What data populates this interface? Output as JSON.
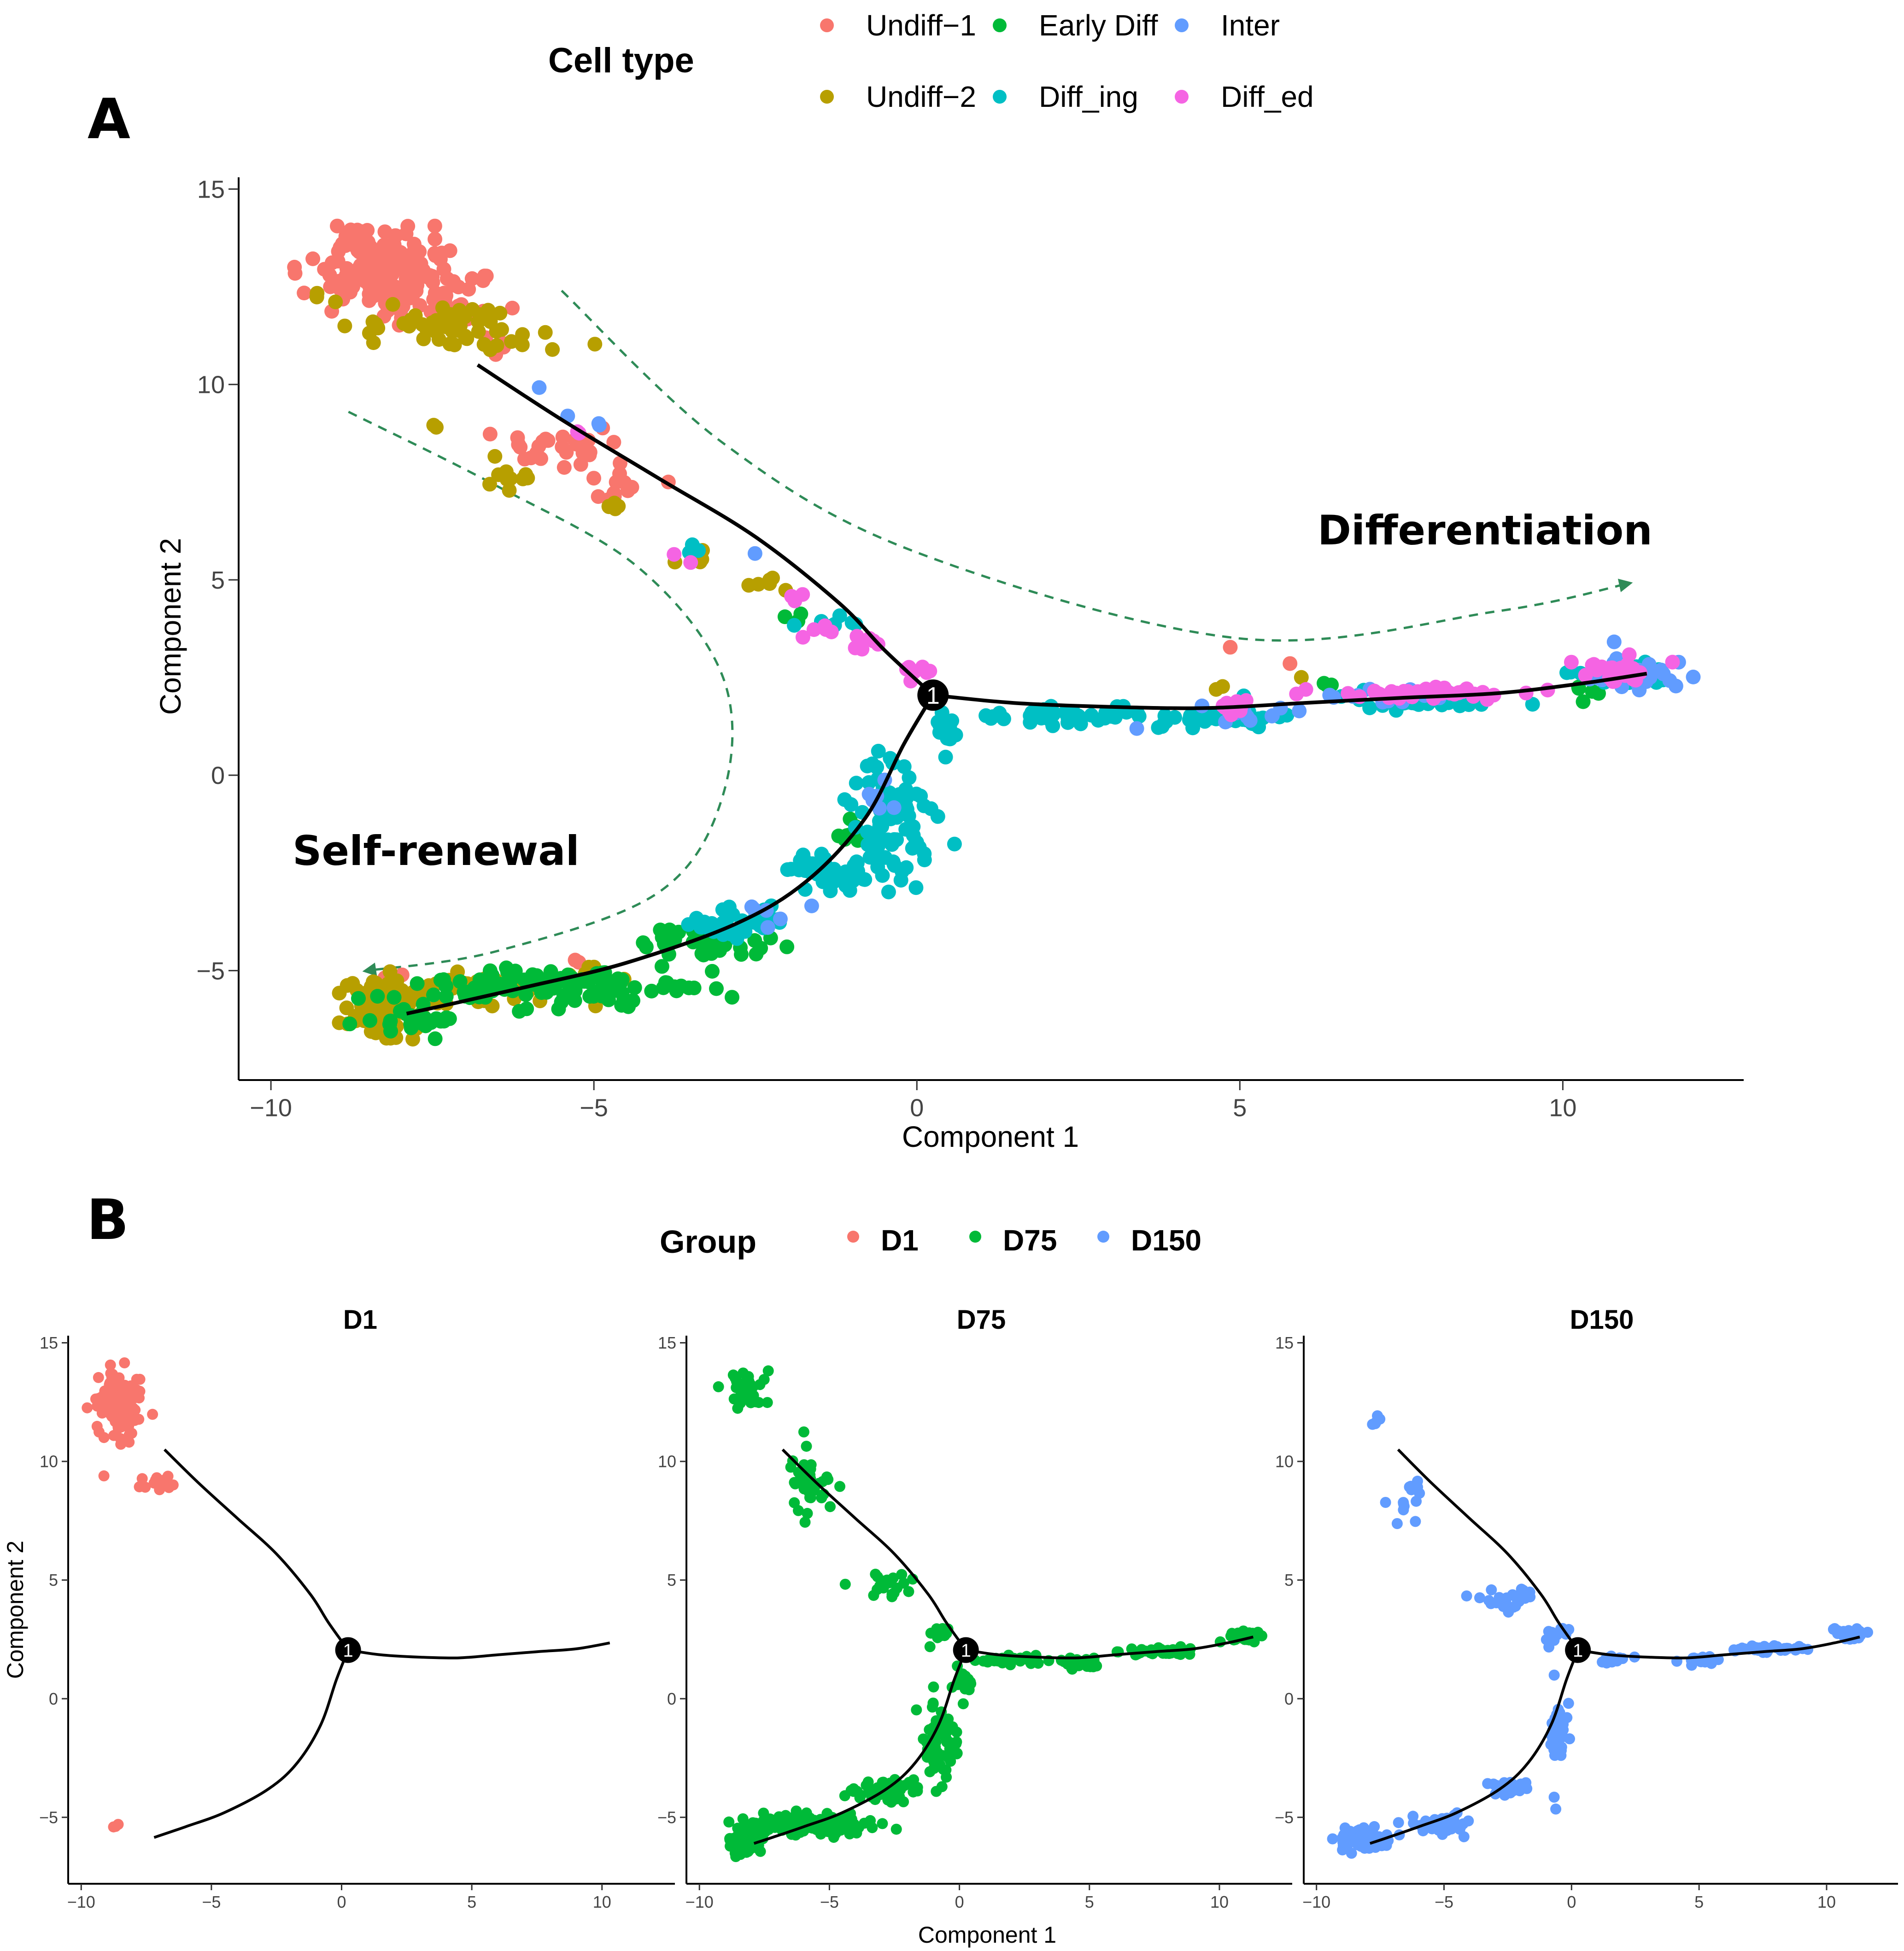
{
  "figure": {
    "panel_a_letter": "A",
    "panel_b_letter": "B"
  },
  "colors": {
    "Undiff-1": "#F8766D",
    "Undiff-2": "#B79F00",
    "Early Diff": "#00BA38",
    "Diff_ing": "#00BFC4",
    "Inter": "#619CFF",
    "Diff_ed": "#F564E3",
    "D1": "#F8766D",
    "D75": "#00BA38",
    "D150": "#619CFF",
    "arrow": "#2E8B57",
    "trajectory": "#000000"
  },
  "chart_data": [
    {
      "id": "panel-a",
      "type": "scatter",
      "title": "",
      "xlabel": "Component 1",
      "ylabel": "Component 2",
      "xlim": [
        -10.5,
        12.8
      ],
      "ylim": [
        -7.8,
        15.3
      ],
      "xticks": [
        -10,
        -5,
        0,
        5,
        10
      ],
      "xtick_labels": [
        "−10",
        "−5",
        "0",
        "5",
        "10"
      ],
      "yticks": [
        -5,
        0,
        5,
        10,
        15
      ],
      "ytick_labels": [
        "−5",
        "0",
        "5",
        "10",
        "15"
      ],
      "legend": {
        "title": "Cell type",
        "position": "top",
        "entries": [
          "Undiff−1",
          "Early Diff",
          "Inter",
          "Undiff−2",
          "Diff_ing",
          "Diff_ed"
        ],
        "keys": [
          "Undiff-1",
          "Early Diff",
          "Inter",
          "Undiff-2",
          "Diff_ing",
          "Diff_ed"
        ]
      },
      "annotations": {
        "differentiation": "Differentiation",
        "self_renewal": "Self-renewal",
        "branch_point": "1"
      },
      "branch_point": [
        0.25,
        2.05
      ],
      "trajectory": [
        [
          [
            -6.8,
            10.5
          ],
          [
            -5.5,
            9.1
          ],
          [
            -4,
            7.6
          ],
          [
            -2.5,
            6.1
          ],
          [
            -1.2,
            4.4
          ],
          [
            -0.5,
            3.2
          ],
          [
            0.25,
            2.05
          ]
        ],
        [
          [
            0.25,
            2.05
          ],
          [
            1.5,
            1.85
          ],
          [
            3,
            1.75
          ],
          [
            4.5,
            1.72
          ],
          [
            6,
            1.85
          ],
          [
            7.5,
            1.98
          ],
          [
            9,
            2.1
          ],
          [
            10.3,
            2.35
          ],
          [
            11.3,
            2.6
          ]
        ],
        [
          [
            0.25,
            2.05
          ],
          [
            -0.2,
            0.8
          ],
          [
            -0.8,
            -1.1
          ],
          [
            -1.7,
            -2.7
          ],
          [
            -2.8,
            -3.8
          ],
          [
            -4.5,
            -4.8
          ],
          [
            -6,
            -5.4
          ],
          [
            -7.2,
            -5.85
          ],
          [
            -7.9,
            -6.1
          ]
        ]
      ],
      "arrows": [
        [
          [
            -5.5,
            12.4
          ],
          [
            -3,
            8.5
          ],
          [
            0,
            5.7
          ],
          [
            5,
            3.5
          ],
          [
            9,
            4.2
          ],
          [
            11,
            4.9
          ]
        ],
        [
          [
            -8.8,
            9.3
          ],
          [
            -6.5,
            7.4
          ],
          [
            -4.3,
            5.3
          ],
          [
            -3,
            2.5
          ],
          [
            -3,
            -0.5
          ],
          [
            -4,
            -3
          ],
          [
            -6.5,
            -4.5
          ],
          [
            -8.5,
            -5
          ]
        ]
      ],
      "series": [
        {
          "name": "Undiff-1",
          "clusters": [
            {
              "cx": -8.1,
              "cy": 12.9,
              "rx": 0.95,
              "ry": 0.95,
              "n": 150
            },
            {
              "cx": -8.8,
              "cy": 13.7,
              "rx": 0.35,
              "ry": 0.4,
              "n": 20
            },
            {
              "cx": -7.2,
              "cy": 12.1,
              "rx": 0.6,
              "ry": 0.5,
              "n": 20
            },
            {
              "cx": -6.7,
              "cy": 11.0,
              "rx": 0.4,
              "ry": 0.5,
              "n": 4
            },
            {
              "cx": -5.5,
              "cy": 8.5,
              "rx": 0.9,
              "ry": 0.6,
              "n": 30
            },
            {
              "cx": -4.7,
              "cy": 7.3,
              "rx": 0.5,
              "ry": 0.3,
              "n": 12
            },
            {
              "cx": 4.85,
              "cy": 3.3,
              "rx": 0.05,
              "ry": 0.05,
              "n": 1
            },
            {
              "cx": 5.8,
              "cy": 2.85,
              "rx": 0.05,
              "ry": 0.05,
              "n": 1
            },
            {
              "cx": -8.2,
              "cy": -5.2,
              "rx": 0.25,
              "ry": 0.15,
              "n": 3
            },
            {
              "cx": -5.3,
              "cy": -4.8,
              "rx": 0.15,
              "ry": 0.1,
              "n": 2
            }
          ]
        },
        {
          "name": "Undiff-2",
          "clusters": [
            {
              "cx": -8.3,
              "cy": -6.0,
              "rx": 0.45,
              "ry": 0.55,
              "n": 170
            },
            {
              "cx": -7.3,
              "cy": 11.4,
              "rx": 1.2,
              "ry": 0.55,
              "n": 60
            },
            {
              "cx": -9.2,
              "cy": 12.2,
              "rx": 0.2,
              "ry": 0.15,
              "n": 3
            },
            {
              "cx": -7.5,
              "cy": 8.9,
              "rx": 0.2,
              "ry": 0.2,
              "n": 2
            },
            {
              "cx": -6.2,
              "cy": 7.6,
              "rx": 0.4,
              "ry": 0.5,
              "n": 10
            },
            {
              "cx": -4.8,
              "cy": 6.9,
              "rx": 0.3,
              "ry": 0.15,
              "n": 5
            },
            {
              "cx": -3.3,
              "cy": 5.6,
              "rx": 0.4,
              "ry": 0.3,
              "n": 5
            },
            {
              "cx": -2.5,
              "cy": 4.9,
              "rx": 0.5,
              "ry": 0.25,
              "n": 6
            },
            {
              "cx": -6.5,
              "cy": -5.5,
              "rx": 1.0,
              "ry": 0.35,
              "n": 35
            },
            {
              "cx": -5.1,
              "cy": -5.1,
              "rx": 0.5,
              "ry": 0.25,
              "n": 12
            },
            {
              "cx": 4.7,
              "cy": 2.2,
              "rx": 0.2,
              "ry": 0.1,
              "n": 2
            },
            {
              "cx": 5.9,
              "cy": 2.5,
              "rx": 0.05,
              "ry": 0.05,
              "n": 1
            }
          ]
        },
        {
          "name": "Early Diff",
          "clusters": [
            {
              "cx": -5.6,
              "cy": -5.4,
              "rx": 2.2,
              "ry": 0.4,
              "n": 110
            },
            {
              "cx": -3.2,
              "cy": -4.3,
              "rx": 1.0,
              "ry": 0.35,
              "n": 40
            },
            {
              "cx": -7.7,
              "cy": -6.3,
              "rx": 0.6,
              "ry": 0.3,
              "n": 25
            },
            {
              "cx": -1.0,
              "cy": -1.5,
              "rx": 0.3,
              "ry": 0.4,
              "n": 8
            },
            {
              "cx": -1.8,
              "cy": 4.0,
              "rx": 0.2,
              "ry": 0.2,
              "n": 3
            },
            {
              "cx": 6.3,
              "cy": 2.3,
              "rx": 0.3,
              "ry": 0.1,
              "n": 3
            },
            {
              "cx": 10.3,
              "cy": 2.1,
              "rx": 0.3,
              "ry": 0.2,
              "n": 5
            }
          ]
        },
        {
          "name": "Diff_ing",
          "clusters": [
            {
              "cx": -0.4,
              "cy": -1.2,
              "rx": 0.6,
              "ry": 1.4,
              "n": 80
            },
            {
              "cx": -1.4,
              "cy": -2.5,
              "rx": 0.55,
              "ry": 0.45,
              "n": 40
            },
            {
              "cx": -2.8,
              "cy": -3.8,
              "rx": 0.7,
              "ry": 0.35,
              "n": 35
            },
            {
              "cx": 0.5,
              "cy": 1.1,
              "rx": 0.2,
              "ry": 0.5,
              "n": 15
            },
            {
              "cx": 2.3,
              "cy": 1.55,
              "rx": 1.3,
              "ry": 0.25,
              "n": 40
            },
            {
              "cx": 4.7,
              "cy": 1.45,
              "rx": 0.9,
              "ry": 0.2,
              "n": 40
            },
            {
              "cx": 7.8,
              "cy": 1.9,
              "rx": 1.3,
              "ry": 0.2,
              "n": 40
            },
            {
              "cx": 10.9,
              "cy": 2.5,
              "rx": 0.8,
              "ry": 0.25,
              "n": 25
            },
            {
              "cx": -1.3,
              "cy": 3.8,
              "rx": 0.6,
              "ry": 0.3,
              "n": 8
            },
            {
              "cx": -3.5,
              "cy": 5.7,
              "rx": 0.3,
              "ry": 0.2,
              "n": 3
            }
          ]
        },
        {
          "name": "Inter",
          "clusters": [
            {
              "cx": 11.0,
              "cy": 2.6,
              "rx": 0.7,
              "ry": 0.3,
              "n": 45
            },
            {
              "cx": 4.9,
              "cy": 1.6,
              "rx": 0.5,
              "ry": 0.25,
              "n": 15
            },
            {
              "cx": 7.5,
              "cy": 2.0,
              "rx": 1.0,
              "ry": 0.2,
              "n": 15
            },
            {
              "cx": -0.6,
              "cy": -0.6,
              "rx": 0.3,
              "ry": 0.6,
              "n": 6
            },
            {
              "cx": -2.3,
              "cy": -3.5,
              "rx": 0.5,
              "ry": 0.3,
              "n": 6
            },
            {
              "cx": 10.8,
              "cy": 3.4,
              "rx": 0.05,
              "ry": 0.05,
              "n": 1
            },
            {
              "cx": -5.8,
              "cy": 9.9,
              "rx": 0.1,
              "ry": 0.05,
              "n": 1
            },
            {
              "cx": -5.4,
              "cy": 9.2,
              "rx": 0.05,
              "ry": 0.05,
              "n": 1
            },
            {
              "cx": -2.5,
              "cy": 5.7,
              "rx": 0.05,
              "ry": 0.05,
              "n": 1
            },
            {
              "cx": -5.0,
              "cy": 9.0,
              "rx": 0.1,
              "ry": 0.1,
              "n": 2
            },
            {
              "cx": 3.4,
              "cy": 1.2,
              "rx": 0.05,
              "ry": 0.05,
              "n": 1
            }
          ]
        },
        {
          "name": "Diff_ed",
          "clusters": [
            {
              "cx": 7.8,
              "cy": 2.1,
              "rx": 1.3,
              "ry": 0.15,
              "n": 40
            },
            {
              "cx": 10.8,
              "cy": 2.7,
              "rx": 0.6,
              "ry": 0.3,
              "n": 25
            },
            {
              "cx": 4.8,
              "cy": 1.8,
              "rx": 0.3,
              "ry": 0.25,
              "n": 10
            },
            {
              "cx": -1.0,
              "cy": 3.6,
              "rx": 0.7,
              "ry": 0.3,
              "n": 12
            },
            {
              "cx": 0.0,
              "cy": 2.7,
              "rx": 0.3,
              "ry": 0.2,
              "n": 8
            },
            {
              "cx": -1.9,
              "cy": 4.6,
              "rx": 0.2,
              "ry": 0.2,
              "n": 3
            },
            {
              "cx": -3.6,
              "cy": 5.6,
              "rx": 0.1,
              "ry": 0.1,
              "n": 2
            },
            {
              "cx": -5.2,
              "cy": 8.8,
              "rx": 0.1,
              "ry": 0.1,
              "n": 2
            },
            {
              "cx": 6.1,
              "cy": 2.1,
              "rx": 0.2,
              "ry": 0.1,
              "n": 2
            }
          ]
        }
      ]
    },
    {
      "id": "panel-b",
      "type": "scatter",
      "facets": [
        "D1",
        "D75",
        "D150"
      ],
      "facet_titles": [
        "D1",
        "D75",
        "D150"
      ],
      "xlabel": "Component 1",
      "ylabel": "Component 2",
      "xlim": [
        -10.5,
        12.8
      ],
      "ylim": [
        -7.8,
        15.3
      ],
      "xticks": [
        -10,
        -5,
        0,
        5,
        10
      ],
      "xtick_labels": [
        "−10",
        "−5",
        "0",
        "5",
        "10"
      ],
      "yticks": [
        -5,
        0,
        5,
        10,
        15
      ],
      "ytick_labels": [
        "−5",
        "0",
        "5",
        "10",
        "15"
      ],
      "legend": {
        "title": "Group",
        "position": "top",
        "entries": [
          "D1",
          "D75",
          "D150"
        ],
        "keys": [
          "D1",
          "D75",
          "D150"
        ]
      },
      "branch_point_label": "1",
      "clusters": {
        "D1": [
          {
            "cx": -8.6,
            "cy": 12.4,
            "rx": 0.75,
            "ry": 1.3,
            "n": 140
          },
          {
            "cx": -6.9,
            "cy": 9.2,
            "rx": 0.8,
            "ry": 0.6,
            "n": 14
          },
          {
            "cx": -8.8,
            "cy": -5.4,
            "rx": 0.3,
            "ry": 0.1,
            "n": 3
          }
        ],
        "D75": [
          {
            "cx": -8.3,
            "cy": -6.0,
            "rx": 0.5,
            "ry": 0.5,
            "n": 140
          },
          {
            "cx": -5.6,
            "cy": -5.3,
            "rx": 2.2,
            "ry": 0.4,
            "n": 140
          },
          {
            "cx": -2.8,
            "cy": -3.9,
            "rx": 1.2,
            "ry": 0.4,
            "n": 50
          },
          {
            "cx": -0.8,
            "cy": -1.8,
            "rx": 0.6,
            "ry": 1.3,
            "n": 60
          },
          {
            "cx": 0.2,
            "cy": 0.6,
            "rx": 0.3,
            "ry": 0.8,
            "n": 20
          },
          {
            "cx": -8.3,
            "cy": 13.0,
            "rx": 0.8,
            "ry": 0.8,
            "n": 45
          },
          {
            "cx": -6.0,
            "cy": 9.0,
            "rx": 0.8,
            "ry": 1.4,
            "n": 40
          },
          {
            "cx": -3.0,
            "cy": 4.8,
            "rx": 1.1,
            "ry": 0.7,
            "n": 20
          },
          {
            "cx": -0.8,
            "cy": 2.8,
            "rx": 0.6,
            "ry": 0.4,
            "n": 12
          },
          {
            "cx": 2.0,
            "cy": 1.6,
            "rx": 1.2,
            "ry": 0.2,
            "n": 40
          },
          {
            "cx": 4.7,
            "cy": 1.5,
            "rx": 0.9,
            "ry": 0.2,
            "n": 40
          },
          {
            "cx": 7.8,
            "cy": 2.0,
            "rx": 1.4,
            "ry": 0.15,
            "n": 50
          },
          {
            "cx": 10.9,
            "cy": 2.6,
            "rx": 0.7,
            "ry": 0.25,
            "n": 40
          }
        ],
        "D150": [
          {
            "cx": -8.2,
            "cy": -5.9,
            "rx": 0.8,
            "ry": 0.4,
            "n": 90
          },
          {
            "cx": -5.3,
            "cy": -5.3,
            "rx": 1.2,
            "ry": 0.35,
            "n": 50
          },
          {
            "cx": -2.5,
            "cy": -3.7,
            "rx": 0.8,
            "ry": 0.3,
            "n": 25
          },
          {
            "cx": -0.6,
            "cy": -1.5,
            "rx": 0.4,
            "ry": 1.4,
            "n": 40
          },
          {
            "cx": -7.6,
            "cy": 11.7,
            "rx": 0.2,
            "ry": 0.2,
            "n": 5
          },
          {
            "cx": -6.5,
            "cy": 8.3,
            "rx": 0.6,
            "ry": 1.0,
            "n": 14
          },
          {
            "cx": -2.5,
            "cy": 4.2,
            "rx": 1.0,
            "ry": 0.6,
            "n": 30
          },
          {
            "cx": -0.6,
            "cy": 2.7,
            "rx": 0.5,
            "ry": 0.3,
            "n": 12
          },
          {
            "cx": 1.5,
            "cy": 1.6,
            "rx": 0.8,
            "ry": 0.2,
            "n": 15
          },
          {
            "cx": 5.0,
            "cy": 1.6,
            "rx": 0.6,
            "ry": 0.2,
            "n": 20
          },
          {
            "cx": 7.8,
            "cy": 2.1,
            "rx": 1.2,
            "ry": 0.15,
            "n": 40
          },
          {
            "cx": 10.9,
            "cy": 2.7,
            "rx": 0.6,
            "ry": 0.25,
            "n": 30
          }
        ]
      }
    }
  ]
}
